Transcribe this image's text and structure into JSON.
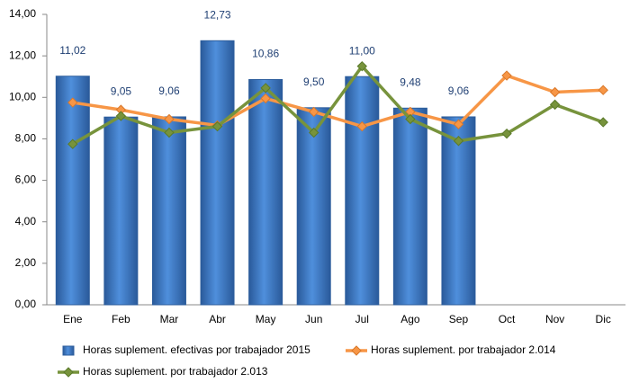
{
  "chart_data": {
    "type": "bar",
    "categories": [
      "Ene",
      "Feb",
      "Mar",
      "Abr",
      "May",
      "Jun",
      "Jul",
      "Ago",
      "Sep",
      "Oct",
      "Nov",
      "Dic"
    ],
    "series": [
      {
        "name": "Horas suplement. efectivas por trabajador 2015",
        "type": "bar",
        "color": "#3d78c4",
        "values": [
          11.02,
          9.05,
          9.06,
          12.73,
          10.86,
          9.5,
          11.0,
          9.48,
          9.06,
          null,
          null,
          null
        ],
        "value_labels": [
          "11,02",
          "9,05",
          "9,06",
          "12,73",
          "10,86",
          "9,50",
          "11,00",
          "9,48",
          "9,06",
          null,
          null,
          null
        ]
      },
      {
        "name": "Horas suplement. por trabajador 2.014",
        "type": "line",
        "color": "#f79646",
        "values": [
          9.75,
          9.4,
          8.95,
          8.65,
          9.95,
          9.3,
          8.6,
          9.3,
          8.7,
          11.05,
          10.25,
          10.35
        ]
      },
      {
        "name": "Horas suplement. por trabajador 2.013",
        "type": "line",
        "color": "#77933c",
        "values": [
          7.75,
          9.1,
          8.3,
          8.6,
          10.45,
          8.3,
          11.5,
          8.95,
          7.9,
          8.25,
          9.65,
          8.8
        ]
      }
    ],
    "ylim": [
      0,
      14
    ],
    "yticks": [
      {
        "value": 0,
        "label": "0,00"
      },
      {
        "value": 2,
        "label": "2,00"
      },
      {
        "value": 4,
        "label": "4,00"
      },
      {
        "value": 6,
        "label": "6,00"
      },
      {
        "value": 8,
        "label": "8,00"
      },
      {
        "value": 10,
        "label": "10,00"
      },
      {
        "value": 12,
        "label": "12,00"
      },
      {
        "value": 14,
        "label": "14,00"
      }
    ],
    "legend": "bottom"
  }
}
